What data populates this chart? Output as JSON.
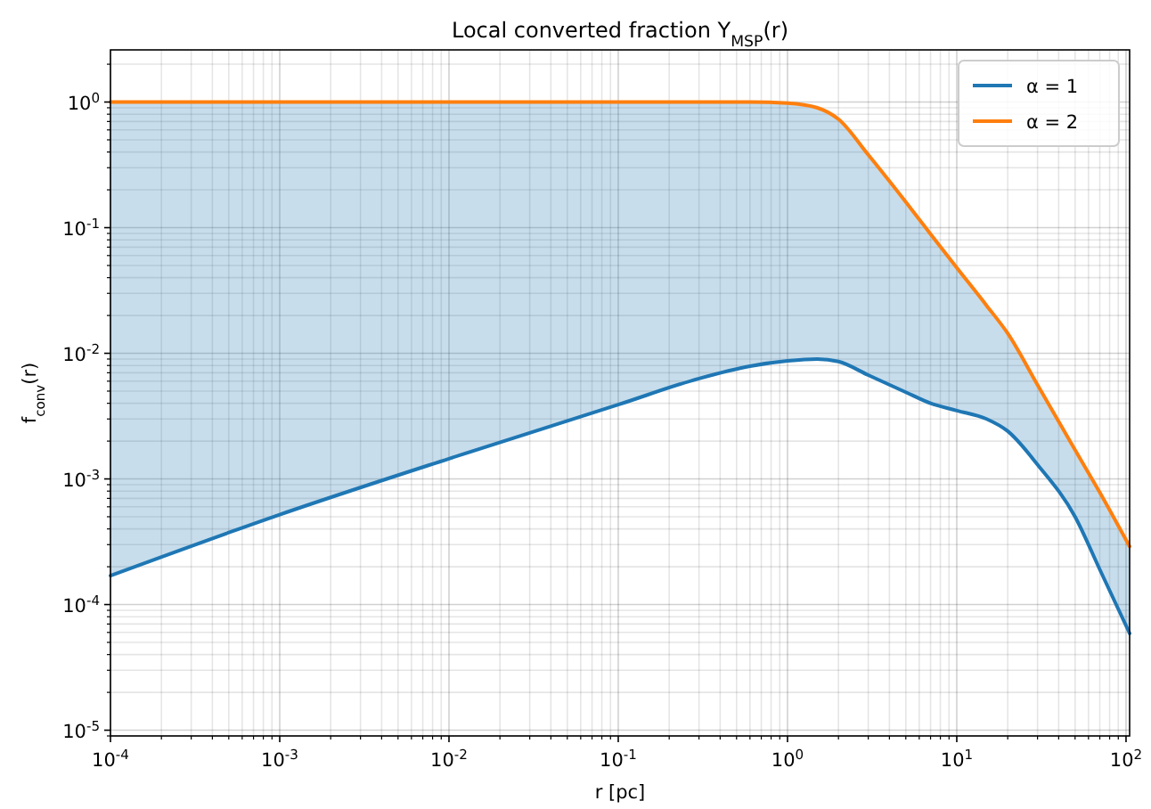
{
  "chart_data": {
    "type": "line",
    "title": "Local converted fraction Y$_{MSP}$(r)",
    "xlabel": "r [pc]",
    "ylabel": "f$_{conv}$(r)",
    "x": [
      0.0001,
      0.001,
      0.01,
      0.1,
      0.3,
      0.6,
      1,
      1.5,
      2,
      3,
      5,
      7,
      10,
      15,
      20,
      30,
      50,
      70,
      105
    ],
    "series": [
      {
        "name": "α = 1",
        "color": "#1f77b4",
        "values": [
          0.00017,
          0.00052,
          0.00145,
          0.0039,
          0.0063,
          0.0079,
          0.0087,
          0.009,
          0.0086,
          0.0067,
          0.0049,
          0.004,
          0.0035,
          0.003,
          0.0024,
          0.0013,
          0.0005,
          0.00019,
          5.9e-05
        ],
        "lower": [
          0.00017,
          0.00052,
          0.00145,
          0.0039,
          0.0063,
          0.0079,
          0.0087,
          0.009,
          0.0086,
          0.0067,
          0.0049,
          0.004,
          0.0035,
          0.003,
          0.0024,
          0.0013,
          0.0005,
          0.00019,
          5.9e-05
        ],
        "upper": [
          1,
          1,
          1,
          1,
          1,
          1,
          0.98,
          0.9,
          0.73,
          0.38,
          0.16,
          0.089,
          0.048,
          0.024,
          0.0144,
          0.0056,
          0.0017,
          0.00078,
          0.00029
        ]
      },
      {
        "name": "α = 2",
        "color": "#ff7f0e",
        "values": [
          1,
          1,
          1,
          1,
          1,
          1,
          0.98,
          0.9,
          0.73,
          0.38,
          0.16,
          0.089,
          0.048,
          0.024,
          0.0144,
          0.0056,
          0.0017,
          0.00078,
          0.00029
        ]
      }
    ],
    "log": "xy",
    "xlim": [
      0.0001,
      105
    ],
    "ylim": [
      9e-06,
      2.6
    ],
    "xticks": [
      {
        "value": 0.0001,
        "label": "10$^{-4}$"
      },
      {
        "value": 0.001,
        "label": "10$^{-3}$"
      },
      {
        "value": 0.01,
        "label": "10$^{-2}$"
      },
      {
        "value": 0.1,
        "label": "10$^{-1}$"
      },
      {
        "value": 1,
        "label": "10$^{0}$"
      },
      {
        "value": 10,
        "label": "10$^{1}$"
      },
      {
        "value": 100,
        "label": "10$^{2}$"
      }
    ],
    "yticks": [
      {
        "value": 1e-05,
        "label": "10$^{-5}$"
      },
      {
        "value": 0.0001,
        "label": "10$^{-4}$"
      },
      {
        "value": 0.001,
        "label": "10$^{-3}$"
      },
      {
        "value": 0.01,
        "label": "10$^{-2}$"
      },
      {
        "value": 0.1,
        "label": "10$^{-1}$"
      },
      {
        "value": 1,
        "label": "10$^{0}$"
      }
    ],
    "grid": true,
    "legend": "top right",
    "line_style": "solid",
    "marker": "none"
  }
}
